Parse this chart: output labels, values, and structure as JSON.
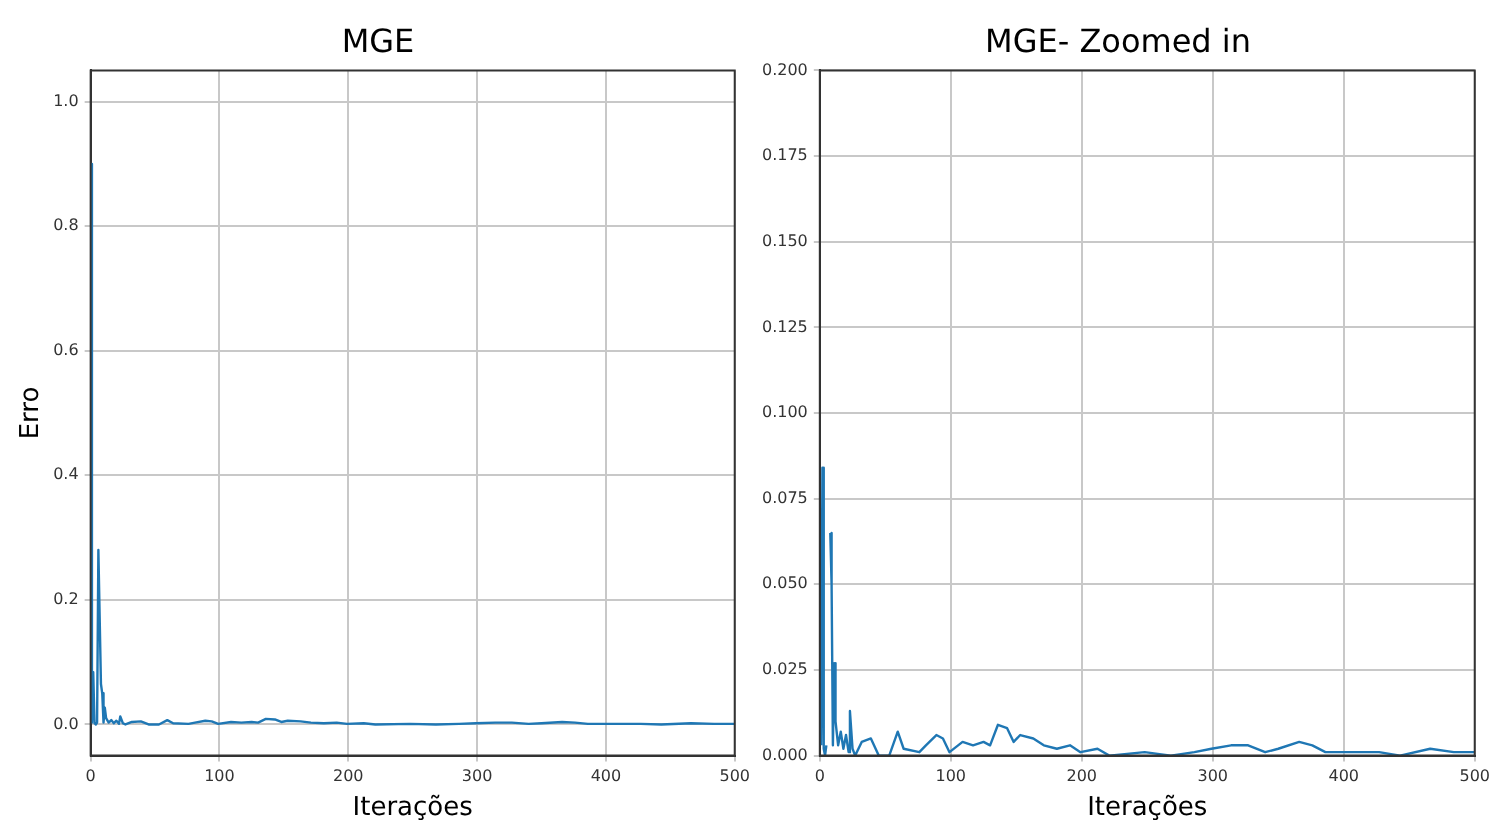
{
  "chart_data": [
    {
      "type": "line",
      "title": "MGE",
      "xlabel": "Iterações",
      "ylabel": "Erro",
      "xlim": [
        0,
        500
      ],
      "xticks": [
        0,
        100,
        200,
        300,
        400,
        500
      ],
      "ylim": [
        -0.05,
        1.05
      ],
      "yticks": [
        {
          "value": 0,
          "label": "0.0"
        },
        {
          "value": 0.2,
          "label": "0.2"
        },
        {
          "value": 0.4,
          "label": "0.4"
        },
        {
          "value": 0.6,
          "label": "0.6"
        },
        {
          "value": 0.8,
          "label": "0.8"
        },
        {
          "value": 1,
          "label": "1.0"
        }
      ],
      "grid": true,
      "series": [
        {
          "color": "#1f77b4",
          "x": [
            0,
            1,
            2,
            3,
            4,
            5,
            6,
            7,
            8,
            9,
            10,
            11,
            12,
            14,
            16,
            18,
            20,
            22,
            23,
            25,
            27,
            32,
            39,
            45,
            53,
            59.5,
            64,
            76,
            81,
            89,
            94,
            99,
            109,
            117,
            125,
            130,
            136,
            143,
            148,
            153,
            163,
            171,
            181,
            191,
            199,
            212,
            221,
            248,
            268,
            286,
            299,
            314,
            327,
            340,
            350,
            366,
            376,
            386,
            401,
            427,
            443,
            466,
            484,
            500
          ],
          "values": [
            0.9,
            0.003,
            0.084,
            0.002,
            0,
            0.003,
            0.28,
            0.28,
            0.065,
            0.05,
            0.003,
            0.027,
            0.01,
            0.003,
            0.007,
            0.002,
            0.006,
            0.001,
            0.013,
            0.002,
            0,
            0.004,
            0.005,
            0,
            0,
            0.007,
            0.002,
            0.001,
            0.003,
            0.006,
            0.005,
            0.001,
            0.004,
            0.003,
            0.004,
            0.003,
            0.009,
            0.008,
            0.004,
            0.006,
            0.005,
            0.003,
            0.002,
            0.003,
            0.001,
            0.002,
            0,
            0.001,
            0,
            0.001,
            0.002,
            0.003,
            0.003,
            0.001,
            0.002,
            0.004,
            0.003,
            0.001,
            0.001,
            0.001,
            0,
            0.002,
            0.001,
            0.001
          ]
        }
      ]
    },
    {
      "type": "line",
      "title": "MGE- Zoomed in",
      "xlabel": "Iterações",
      "xlim": [
        0,
        500
      ],
      "xticks": [
        0,
        100,
        200,
        300,
        400,
        500
      ],
      "ylim": [
        0,
        0.2
      ],
      "yticks": [
        {
          "value": 0,
          "label": "0.000"
        },
        {
          "value": 0.025,
          "label": "0.025"
        },
        {
          "value": 0.05,
          "label": "0.050"
        },
        {
          "value": 0.075,
          "label": "0.075"
        },
        {
          "value": 0.1,
          "label": "0.100"
        },
        {
          "value": 0.125,
          "label": "0.125"
        },
        {
          "value": 0.15,
          "label": "0.150"
        },
        {
          "value": 0.175,
          "label": "0.175"
        },
        {
          "value": 0.2,
          "label": "0.200"
        }
      ],
      "grid": true,
      "series": [
        {
          "color": "#1f77b4",
          "x": [
            1,
            2,
            3,
            4,
            5,
            6,
            7,
            8,
            9,
            10,
            11,
            12,
            14,
            16,
            18,
            20,
            22,
            23,
            25,
            27,
            32,
            39,
            45,
            53,
            59.5,
            64,
            76,
            81,
            89,
            94,
            99,
            109,
            117,
            125,
            130,
            136,
            143,
            148,
            153,
            163,
            171,
            181,
            191,
            199,
            212,
            221,
            248,
            268,
            286,
            299,
            314,
            327,
            340,
            350,
            366,
            376,
            386,
            401,
            427,
            443,
            466,
            484,
            500
          ],
          "values": [
            0.003,
            0.084,
            0.002,
            0,
            0.003,
            null,
            null,
            0.065,
            0.05,
            0.003,
            0.027,
            0.01,
            0.003,
            0.007,
            0.002,
            0.006,
            0.001,
            0.013,
            0.002,
            0,
            0.004,
            0.005,
            0,
            0,
            0.007,
            0.002,
            0.001,
            0.003,
            0.006,
            0.005,
            0.001,
            0.004,
            0.003,
            0.004,
            0.003,
            0.009,
            0.008,
            0.004,
            0.006,
            0.005,
            0.003,
            0.002,
            0.003,
            0.001,
            0.002,
            0,
            0.001,
            0,
            0.001,
            0.002,
            0.003,
            0.003,
            0.001,
            0.002,
            0.004,
            0.003,
            0.001,
            0.001,
            0.001,
            0,
            0.002,
            0.001,
            0.001
          ]
        }
      ]
    }
  ]
}
